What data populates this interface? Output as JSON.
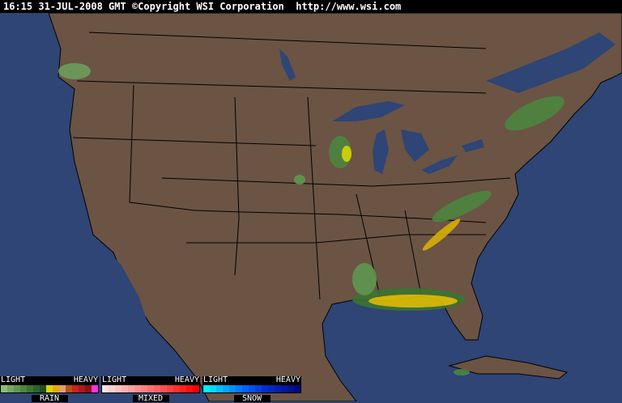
{
  "header": {
    "text": "16:15 31-JUL-2008 GMT ©Copyright WSI Corporation  http://www.wsi.com"
  },
  "colors": {
    "ocean": "#2e4575",
    "land": "#6b5444",
    "border": "#000000"
  },
  "legend": [
    {
      "name": "RAIN",
      "light": "LIGHT",
      "heavy": "HEAVY",
      "colors": [
        "#8cbc78",
        "#74aa62",
        "#5e9850",
        "#4c8640",
        "#3c7432",
        "#2c6226",
        "#1e501c",
        "#d8d800",
        "#f0a800",
        "#e0a070",
        "#b85010",
        "#d02020",
        "#b01818",
        "#901010",
        "#ff30e0"
      ]
    },
    {
      "name": "MIXED",
      "light": "LIGHT",
      "heavy": "HEAVY",
      "colors": [
        "#ffe0e0",
        "#ffd0d0",
        "#ffc0c0",
        "#ffb0b0",
        "#ffa0a0",
        "#ff9090",
        "#ff8080",
        "#ff7070",
        "#ff6060",
        "#ff5050",
        "#ff4040",
        "#ff3030",
        "#ff2020",
        "#ff1010",
        "#ff0000"
      ]
    },
    {
      "name": "SNOW",
      "light": "LIGHT",
      "heavy": "HEAVY",
      "colors": [
        "#00f0ff",
        "#00d8ff",
        "#00c0ff",
        "#00a8ff",
        "#0090ff",
        "#0078ff",
        "#0060ff",
        "#0050f0",
        "#0040e0",
        "#0030d0",
        "#0028c0",
        "#0020b0",
        "#0018a0",
        "#001090",
        "#000880"
      ]
    }
  ]
}
